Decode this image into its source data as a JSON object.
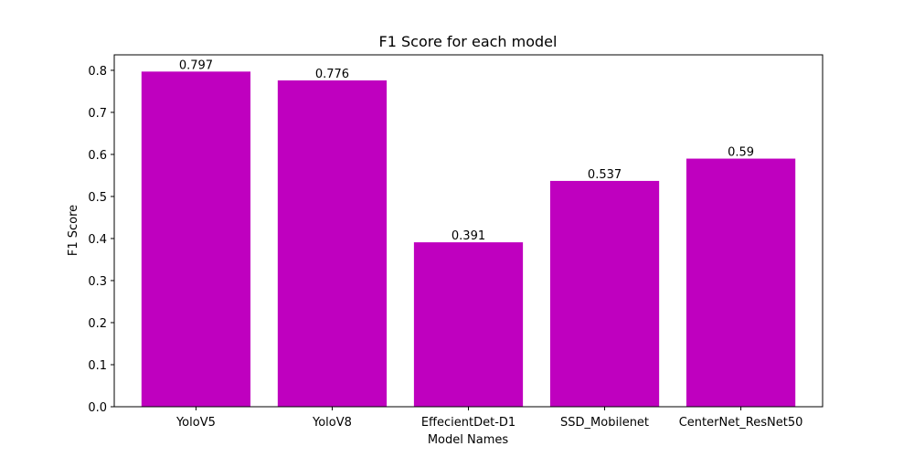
{
  "chart_data": {
    "type": "bar",
    "title": "F1 Score for each model",
    "xlabel": "Model Names",
    "ylabel": "F1 Score",
    "categories": [
      "YoloV5",
      "YoloV8",
      "EffecientDet-D1",
      "SSD_Mobilenet",
      "CenterNet_ResNet50"
    ],
    "values": [
      0.797,
      0.776,
      0.391,
      0.537,
      0.59
    ],
    "data_labels": [
      "0.797",
      "0.776",
      "0.391",
      "0.537",
      "0.59"
    ],
    "ylim": [
      0,
      0.8368
    ],
    "yticks": [
      0.0,
      0.1,
      0.2,
      0.3,
      0.4,
      0.5,
      0.6,
      0.7,
      0.8
    ],
    "ytick_labels": [
      "0.0",
      "0.1",
      "0.2",
      "0.3",
      "0.4",
      "0.5",
      "0.6",
      "0.7",
      "0.8"
    ],
    "bar_color": "#bf00bf",
    "grid": false,
    "legend": "none"
  }
}
